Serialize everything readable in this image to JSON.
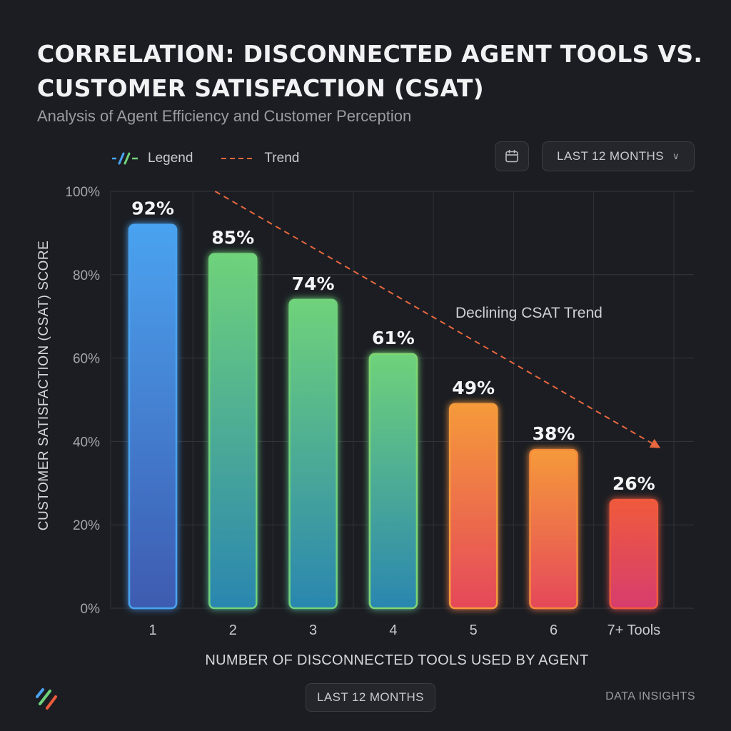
{
  "header": {
    "title": "CORRELATION: DISCONNECTED AGENT TOOLS VS. CUSTOMER SATISFACTION (CSAT)",
    "subtitle": "Analysis of Agent Efficiency and Customer Perception"
  },
  "legend": {
    "legend_label": "Legend",
    "trend_label": "Trend"
  },
  "controls": {
    "calendar_icon": "calendar-icon",
    "range_label": "LAST 12 MONTHS"
  },
  "chart_data": {
    "type": "bar",
    "categories": [
      "1",
      "2",
      "3",
      "4",
      "5",
      "6",
      "7+ Tools"
    ],
    "values": [
      92,
      85,
      74,
      61,
      49,
      38,
      26
    ],
    "value_labels": [
      "92%",
      "85%",
      "74%",
      "61%",
      "49%",
      "38%",
      "26%"
    ],
    "ylabel": "CUSTOMER SATISFACTION (CSAT) SCORE",
    "xlabel": "NUMBER OF DISCONNECTED TOOLS USED BY AGENT",
    "ylim": [
      0,
      100
    ],
    "yticks": [
      0,
      20,
      40,
      60,
      80,
      100
    ],
    "ytick_labels": [
      "0%",
      "20%",
      "40%",
      "60%",
      "80%",
      "100%"
    ],
    "grid": true,
    "annotation": "Declining CSAT Trend",
    "trend": {
      "start": {
        "x": "2",
        "y": 100
      },
      "end": {
        "x": "7+ Tools",
        "y": 40
      }
    },
    "colors": {
      "blue_top": "#4aa3f0",
      "blue_bottom": "#3e5bb0",
      "green_top": "#6fd27a",
      "green_bottom": "#2a86b0",
      "orange_top": "#f59a3a",
      "orange_bottom": "#e5485a",
      "red_top": "#ef5a3c",
      "red_bottom": "#d63d6e",
      "trend": "#e8673f"
    }
  },
  "footer": {
    "range_label": "LAST 12 MONTHS",
    "brand": "DATA INSIGHTS"
  }
}
